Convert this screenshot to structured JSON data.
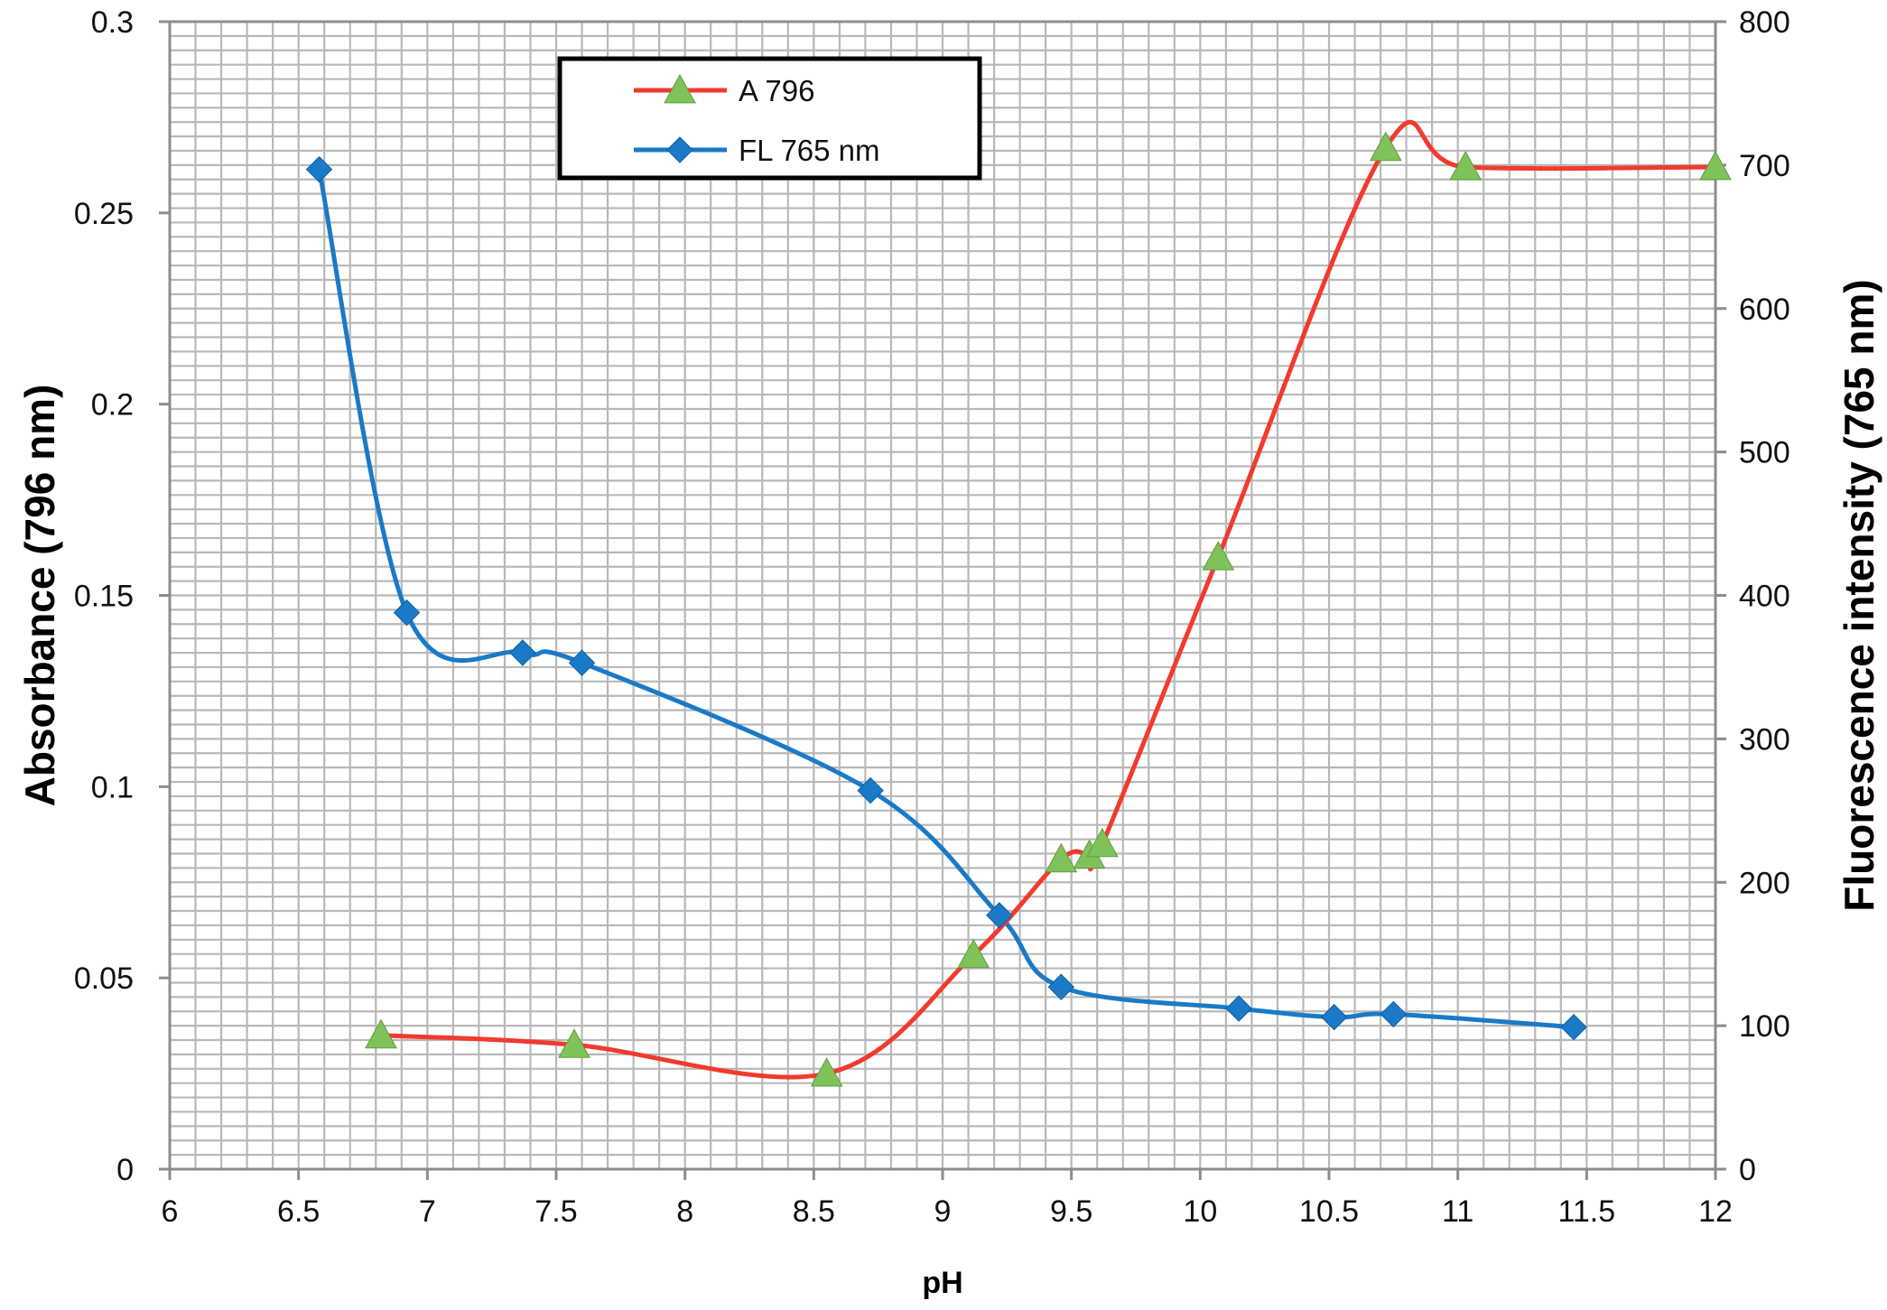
{
  "chart_data": {
    "type": "line",
    "x": {
      "label": "pH",
      "range": [
        6,
        12
      ],
      "ticks": [
        "6",
        "6.5",
        "7",
        "7.5",
        "8",
        "8.5",
        "9",
        "9.5",
        "10",
        "10.5",
        "11",
        "11.5",
        "12"
      ]
    },
    "y_left": {
      "label": "Absorbance (796 nm)",
      "range": [
        0,
        0.3
      ],
      "ticks": [
        "0",
        "0.05",
        "0.1",
        "0.15",
        "0.2",
        "0.25",
        "0.3"
      ]
    },
    "y_right": {
      "label": "Fluorescence intensity (765 nm)",
      "range": [
        0,
        800
      ],
      "ticks": [
        "0",
        "100",
        "200",
        "300",
        "400",
        "500",
        "600",
        "700",
        "800"
      ]
    },
    "grid": true,
    "legend_position": "top-left",
    "series": [
      {
        "name": "A 796",
        "axis": "left",
        "line_color": "#f23a2e",
        "marker_color": "#7fc25a",
        "marker": "triangle",
        "points": [
          [
            6.82,
            0.035
          ],
          [
            7.57,
            0.0325
          ],
          [
            8.55,
            0.025
          ],
          [
            9.12,
            0.056
          ],
          [
            9.46,
            0.081
          ],
          [
            9.57,
            0.082
          ],
          [
            9.62,
            0.085
          ],
          [
            10.07,
            0.16
          ],
          [
            10.72,
            0.267
          ],
          [
            11.03,
            0.262
          ],
          [
            12.0,
            0.262
          ]
        ]
      },
      {
        "name": "FL 765 nm",
        "axis": "right",
        "line_color": "#1a7ac7",
        "marker_color": "#1a7ac7",
        "marker": "diamond",
        "points": [
          [
            6.58,
            697
          ],
          [
            6.92,
            388
          ],
          [
            7.37,
            360
          ],
          [
            7.6,
            353
          ],
          [
            8.72,
            264
          ],
          [
            9.22,
            177
          ],
          [
            9.46,
            127
          ],
          [
            10.15,
            112
          ],
          [
            10.52,
            106
          ],
          [
            10.75,
            108
          ],
          [
            11.45,
            99
          ]
        ]
      }
    ]
  }
}
